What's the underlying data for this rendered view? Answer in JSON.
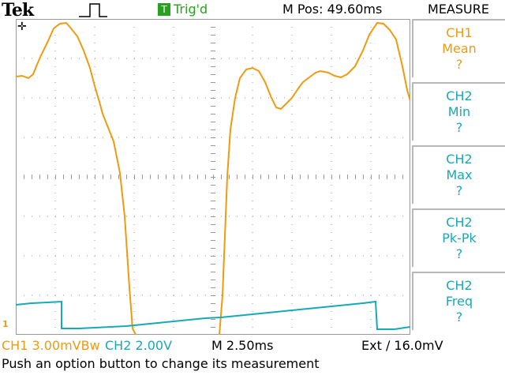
{
  "header": {
    "brand": "Tek",
    "trigger_status": "Trig'd",
    "trigger_badge": "T",
    "horizontal_position": "M Pos: 49.60ms"
  },
  "measure": {
    "title": "MEASURE",
    "items": [
      {
        "source": "CH1",
        "type": "Mean",
        "value": "?",
        "color": "#f09a10"
      },
      {
        "source": "CH2",
        "type": "Min",
        "value": "?",
        "color": "#17a9b8"
      },
      {
        "source": "CH2",
        "type": "Max",
        "value": "?",
        "color": "#17a9b8"
      },
      {
        "source": "CH2",
        "type": "Pk-Pk",
        "value": "?",
        "color": "#17a9b8"
      },
      {
        "source": "CH2",
        "type": "Freq",
        "value": "?",
        "color": "#17a9b8"
      }
    ]
  },
  "status": {
    "ch1": "CH1  3.00mVBw",
    "ch2": "CH2  2.00V",
    "timebase": "M 2.50ms",
    "trigger": "Ext ∕ 16.0mV"
  },
  "message": "Push an option button to change its measurement",
  "colors": {
    "ch1": "#f09a10",
    "ch2": "#17a9b8",
    "grid": "#9a9a9a"
  }
}
